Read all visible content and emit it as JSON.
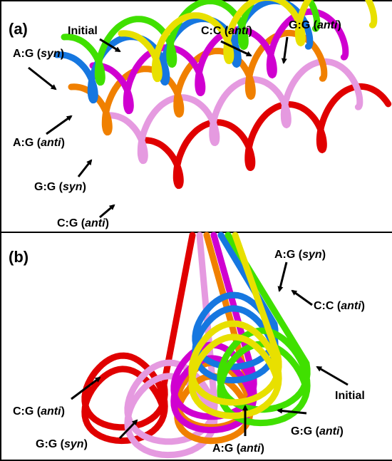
{
  "panels": [
    {
      "label": "(a)",
      "annotations": [
        {
          "parts": [
            "Initial"
          ]
        },
        {
          "parts": [
            "A:G (",
            "syn",
            ")"
          ]
        },
        {
          "parts": [
            "C:C (",
            "anti",
            ")"
          ]
        },
        {
          "parts": [
            "G:G (",
            "anti",
            ")"
          ]
        },
        {
          "parts": [
            "A:G (",
            "anti",
            ")"
          ]
        },
        {
          "parts": [
            "G:G (",
            "syn",
            ")"
          ]
        },
        {
          "parts": [
            "C:G (",
            "anti",
            ")"
          ]
        }
      ]
    },
    {
      "label": "(b)",
      "annotations": [
        {
          "parts": [
            "A:G (",
            "syn",
            ")"
          ]
        },
        {
          "parts": [
            "C:C (",
            "anti",
            ")"
          ]
        },
        {
          "parts": [
            "Initial"
          ]
        },
        {
          "parts": [
            "C:G (",
            "anti",
            ")"
          ]
        },
        {
          "parts": [
            "G:G (",
            "syn",
            ")"
          ]
        },
        {
          "parts": [
            "A:G (",
            "anti",
            ")"
          ]
        },
        {
          "parts": [
            "G:G (",
            "anti",
            ")"
          ]
        }
      ]
    }
  ]
}
